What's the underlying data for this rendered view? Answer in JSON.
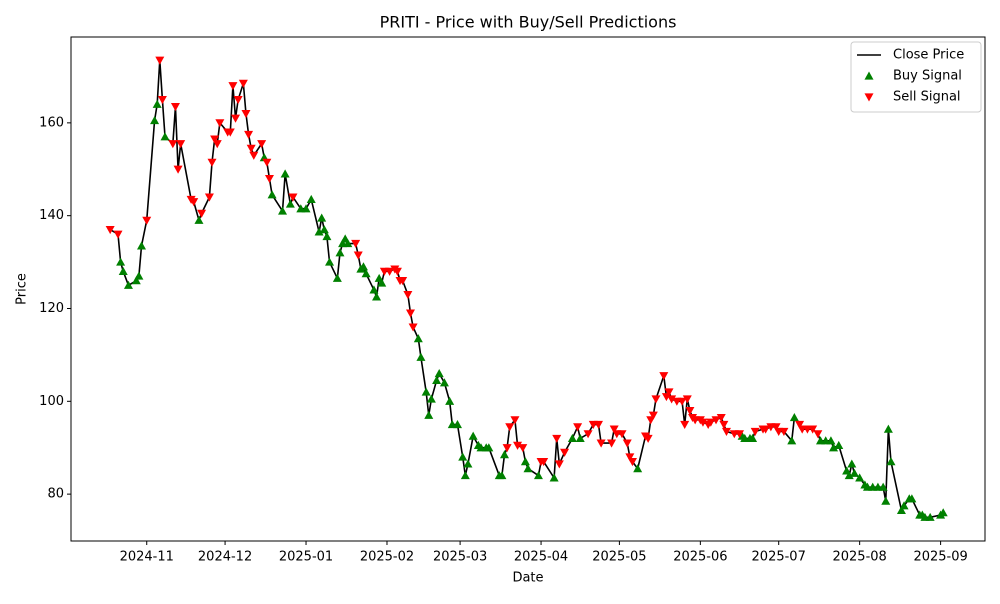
{
  "chart_data": {
    "type": "line_signals",
    "title": "PRITI - Price with Buy/Sell Predictions",
    "x_label": "Date",
    "y_label": "Price",
    "xlim": [
      19999,
      20349
    ],
    "ylim": [
      69.9,
      178.5
    ],
    "xticks": [
      {
        "value": 20028,
        "label": "2024-11"
      },
      {
        "value": 20058,
        "label": "2024-12"
      },
      {
        "value": 20089,
        "label": "2025-01"
      },
      {
        "value": 20120,
        "label": "2025-02"
      },
      {
        "value": 20148,
        "label": "2025-03"
      },
      {
        "value": 20179,
        "label": "2025-04"
      },
      {
        "value": 20209,
        "label": "2025-05"
      },
      {
        "value": 20240,
        "label": "2025-06"
      },
      {
        "value": 20270,
        "label": "2025-07"
      },
      {
        "value": 20301,
        "label": "2025-08"
      },
      {
        "value": 20332,
        "label": "2025-09"
      }
    ],
    "yticks": [
      80,
      100,
      120,
      140,
      160
    ],
    "legend": "upper right",
    "series": [
      {
        "name": "Close Price",
        "kind": "line",
        "color": "#000000",
        "x": [
          20014,
          20017,
          20018,
          20019,
          20021,
          20024,
          20025,
          20026,
          20028,
          20031,
          20032,
          20033,
          20034,
          20035,
          20038,
          20039,
          20040,
          20041,
          20045,
          20046,
          20048,
          20049,
          20052,
          20053,
          20054,
          20055,
          20056,
          20059,
          20060,
          20061,
          20062,
          20063,
          20065,
          20066,
          20067,
          20068,
          20069,
          20072,
          20073,
          20074,
          20075,
          20076,
          20080,
          20081,
          20083,
          20084,
          20087,
          20089,
          20091,
          20094,
          20095,
          20096,
          20097,
          20098,
          20101,
          20102,
          20103,
          20104,
          20105,
          20108,
          20109,
          20110,
          20111,
          20112,
          20115,
          20116,
          20117,
          20118,
          20119,
          20121,
          20123,
          20124,
          20125,
          20126,
          20128,
          20129,
          20130,
          20132,
          20133,
          20135,
          20136,
          20137,
          20139,
          20140,
          20142,
          20144,
          20145,
          20147,
          20149,
          20150,
          20151,
          20153,
          20155,
          20156,
          20158,
          20159,
          20163,
          20164,
          20165,
          20166,
          20167,
          20169,
          20170,
          20172,
          20173,
          20174,
          20178,
          20179,
          20180,
          20184,
          20185,
          20186,
          20188,
          20191,
          20193,
          20194,
          20197,
          20199,
          20201,
          20202,
          20206,
          20207,
          20208,
          20210,
          20212,
          20213,
          20214,
          20216,
          20219,
          20220,
          20221,
          20222,
          20223,
          20226,
          20227,
          20228,
          20229,
          20231,
          20233,
          20234,
          20235,
          20236,
          20237,
          20238,
          20240,
          20241,
          20243,
          20244,
          20246,
          20248,
          20249,
          20250,
          20253,
          20255,
          20256,
          20257,
          20259,
          20260,
          20261,
          20264,
          20265,
          20267,
          20269,
          20270,
          20272,
          20275,
          20276,
          20278,
          20279,
          20281,
          20283,
          20285,
          20286,
          20288,
          20290,
          20291,
          20293,
          20296,
          20297,
          20298,
          20299,
          20301,
          20303,
          20304,
          20306,
          20308,
          20310,
          20311,
          20312,
          20313,
          20317,
          20318,
          20320,
          20321,
          20324,
          20325,
          20326,
          20328,
          20332,
          20333
        ],
        "values": [
          137,
          136,
          130,
          128,
          125,
          126,
          127,
          133.5,
          139,
          160.5,
          164,
          173.5,
          165,
          157,
          155.5,
          163.5,
          150,
          155.5,
          143.5,
          143,
          139,
          140.5,
          144,
          151.5,
          156.5,
          155.5,
          160,
          158,
          158,
          168,
          161,
          165,
          168.5,
          162,
          157.5,
          154.5,
          153,
          155.5,
          152.5,
          151.5,
          148,
          144.5,
          141,
          149,
          142.5,
          144,
          141.5,
          141.5,
          143.5,
          136.5,
          139.5,
          137,
          135.5,
          130,
          126.5,
          132,
          134,
          135,
          134,
          134,
          131.5,
          128.5,
          129,
          127.5,
          124,
          122.5,
          126.5,
          125.5,
          128,
          128,
          128.5,
          128,
          126,
          126,
          123,
          119,
          116,
          113.5,
          109.5,
          102,
          97,
          100.5,
          104.5,
          106,
          104,
          100,
          95,
          95,
          88,
          84,
          86.5,
          92.5,
          90.5,
          90,
          90,
          90,
          84,
          84,
          88.5,
          90,
          94.5,
          96,
          90.5,
          90,
          87,
          85.5,
          84,
          87,
          87,
          83.5,
          92,
          86.5,
          89,
          92,
          94.5,
          92,
          93,
          95,
          95,
          91,
          91,
          94,
          93,
          93,
          91,
          88,
          87,
          85.5,
          92.5,
          92,
          96,
          97,
          100.5,
          105.5,
          101,
          102,
          100.5,
          100,
          100,
          95,
          100.5,
          98,
          96.5,
          96,
          96,
          95.5,
          95,
          95.5,
          96,
          96.5,
          95,
          93.5,
          93,
          93,
          92.5,
          92,
          92,
          92,
          93.5,
          94,
          94,
          94.5,
          94.5,
          93.5,
          93.5,
          91.5,
          96.5,
          95,
          94,
          94,
          94,
          93,
          91.5,
          91.5,
          91.5,
          90,
          90.5,
          85,
          84,
          86.5,
          84.5,
          83.5,
          82,
          81.5,
          81.5,
          81.5,
          81.5,
          78.5,
          94,
          87,
          76.5,
          77.5,
          79,
          79,
          75.5,
          75.5,
          75,
          75,
          75.5,
          76
        ]
      },
      {
        "name": "Buy Signal",
        "kind": "up",
        "color": "#008000",
        "x": [
          20018,
          20019,
          20021,
          20024,
          20025,
          20026,
          20031,
          20032,
          20035,
          20048,
          20073,
          20076,
          20080,
          20081,
          20083,
          20087,
          20089,
          20091,
          20094,
          20095,
          20096,
          20097,
          20098,
          20101,
          20102,
          20103,
          20104,
          20105,
          20110,
          20111,
          20112,
          20115,
          20116,
          20117,
          20118,
          20132,
          20133,
          20135,
          20136,
          20137,
          20139,
          20140,
          20142,
          20144,
          20145,
          20147,
          20149,
          20150,
          20151,
          20153,
          20155,
          20156,
          20158,
          20159,
          20163,
          20164,
          20165,
          20173,
          20174,
          20178,
          20184,
          20191,
          20194,
          20216,
          20256,
          20257,
          20259,
          20260,
          20275,
          20276,
          20286,
          20288,
          20290,
          20291,
          20293,
          20296,
          20297,
          20298,
          20299,
          20301,
          20303,
          20304,
          20306,
          20308,
          20310,
          20311,
          20312,
          20313,
          20317,
          20318,
          20320,
          20321,
          20324,
          20325,
          20326,
          20328,
          20332,
          20333
        ],
        "values": [
          130,
          128,
          125,
          126,
          127,
          133.5,
          160.5,
          164,
          157,
          139,
          152.5,
          144.5,
          141,
          149,
          142.5,
          141.5,
          141.5,
          143.5,
          136.5,
          139.5,
          137,
          135.5,
          130,
          126.5,
          132,
          134,
          135,
          134,
          128.5,
          129,
          127.5,
          124,
          122.5,
          126.5,
          125.5,
          113.5,
          109.5,
          102,
          97,
          100.5,
          104.5,
          106,
          104,
          100,
          95,
          95,
          88,
          84,
          86.5,
          92.5,
          90.5,
          90,
          90,
          90,
          84,
          84,
          88.5,
          87,
          85.5,
          84,
          83.5,
          92,
          92,
          85.5,
          92.5,
          92,
          92,
          92,
          91.5,
          96.5,
          91.5,
          91.5,
          91.5,
          90,
          90.5,
          85,
          84,
          86.5,
          84.5,
          83.5,
          82,
          81.5,
          81.5,
          81.5,
          81.5,
          78.5,
          94,
          87,
          76.5,
          77.5,
          79,
          79,
          75.5,
          75.5,
          75,
          75,
          75.5,
          76
        ]
      },
      {
        "name": "Sell Signal",
        "kind": "down",
        "color": "#ff0000",
        "x": [
          20014,
          20017,
          20028,
          20033,
          20034,
          20038,
          20039,
          20040,
          20041,
          20045,
          20046,
          20049,
          20052,
          20053,
          20054,
          20055,
          20056,
          20059,
          20060,
          20061,
          20062,
          20063,
          20065,
          20066,
          20067,
          20068,
          20069,
          20072,
          20074,
          20075,
          20084,
          20108,
          20109,
          20119,
          20121,
          20123,
          20124,
          20125,
          20126,
          20128,
          20129,
          20130,
          20166,
          20167,
          20169,
          20170,
          20172,
          20179,
          20180,
          20185,
          20186,
          20188,
          20193,
          20197,
          20199,
          20201,
          20202,
          20206,
          20207,
          20208,
          20210,
          20212,
          20213,
          20214,
          20219,
          20220,
          20221,
          20222,
          20223,
          20226,
          20227,
          20228,
          20229,
          20231,
          20233,
          20234,
          20235,
          20236,
          20237,
          20238,
          20240,
          20241,
          20243,
          20244,
          20246,
          20248,
          20249,
          20250,
          20253,
          20255,
          20261,
          20264,
          20265,
          20267,
          20269,
          20270,
          20272,
          20278,
          20279,
          20281,
          20283,
          20285
        ],
        "values": [
          137,
          136,
          139,
          173.5,
          165,
          155.5,
          163.5,
          150,
          155.5,
          143.5,
          143,
          140.5,
          144,
          151.5,
          156.5,
          155.5,
          160,
          158,
          158,
          168,
          161,
          165,
          168.5,
          162,
          157.5,
          154.5,
          153,
          155.5,
          151.5,
          148,
          144,
          134,
          131.5,
          128,
          128,
          128.5,
          128,
          126,
          126,
          123,
          119,
          116,
          90,
          94.5,
          96,
          90.5,
          90,
          87,
          87,
          92,
          86.5,
          89,
          94.5,
          93,
          95,
          95,
          91,
          91,
          94,
          93,
          93,
          91,
          88,
          87,
          92.5,
          92,
          96,
          97,
          100.5,
          105.5,
          101,
          102,
          100.5,
          100,
          100,
          95,
          100.5,
          98,
          96.5,
          96,
          96,
          95.5,
          95,
          95.5,
          96,
          96.5,
          95,
          93.5,
          93,
          93,
          93.5,
          94,
          94,
          94.5,
          94.5,
          93.5,
          93.5,
          95,
          94,
          94,
          94,
          93
        ]
      }
    ]
  }
}
